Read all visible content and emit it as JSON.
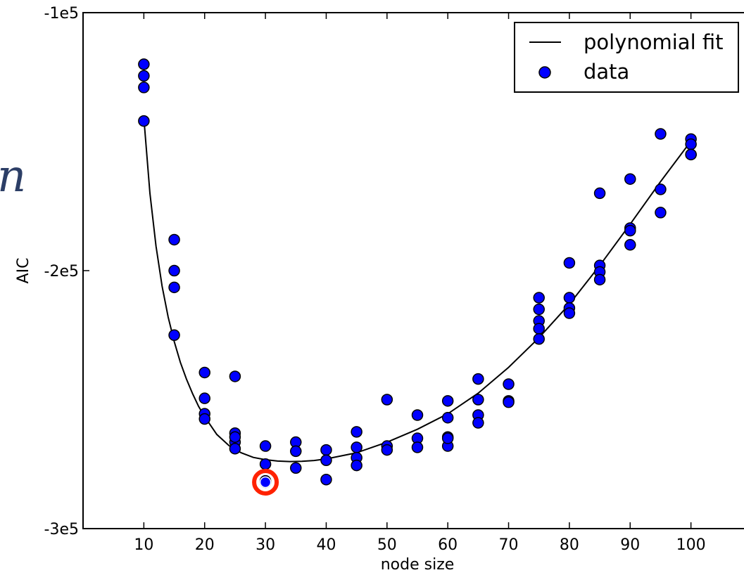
{
  "chart_data": {
    "type": "scatter",
    "xlabel": "node size",
    "ylabel": "AIC",
    "xlim": [
      0,
      110
    ],
    "ylim": [
      -300000,
      -100000
    ],
    "x_ticks": [
      10,
      20,
      30,
      40,
      50,
      60,
      70,
      80,
      90,
      100
    ],
    "x_tick_labels": [
      "10",
      "20",
      "30",
      "40",
      "50",
      "60",
      "70",
      "80",
      "90",
      "100"
    ],
    "y_ticks": [
      -100000,
      -200000,
      -300000
    ],
    "y_tick_labels": [
      "-1e5",
      "-2e5",
      "-3e5"
    ],
    "grid": false,
    "legend": {
      "placement": "top-right",
      "entries": [
        "polynomial fit",
        "data"
      ]
    },
    "series": [
      {
        "name": "polynomial fit",
        "kind": "line",
        "color": "#000000",
        "x": [
          10,
          11,
          12,
          13,
          14,
          15,
          16,
          17,
          18,
          19,
          20,
          22,
          24,
          26,
          28,
          30,
          32,
          34,
          36,
          38,
          40,
          45,
          50,
          55,
          60,
          65,
          70,
          75,
          80,
          85,
          90,
          95,
          100
        ],
        "y": [
          -140800,
          -170000,
          -190500,
          -206000,
          -218000,
          -227500,
          -235500,
          -242000,
          -247600,
          -252600,
          -256600,
          -263500,
          -267800,
          -270600,
          -272400,
          -273300,
          -273800,
          -274000,
          -273900,
          -273600,
          -273000,
          -270600,
          -266500,
          -261500,
          -255500,
          -247500,
          -237500,
          -226000,
          -213000,
          -198000,
          -182000,
          -165500,
          -149800
        ]
      },
      {
        "name": "data",
        "kind": "scatter",
        "color": "#0000ff",
        "edge_color": "#000000",
        "x": [
          10,
          10,
          10,
          10,
          15,
          15,
          15,
          15,
          20,
          20,
          20,
          20,
          25,
          25,
          25,
          25,
          25,
          30,
          30,
          30,
          30,
          35,
          35,
          35,
          40,
          40,
          40,
          45,
          45,
          45,
          45,
          50,
          50,
          50,
          55,
          55,
          55,
          60,
          60,
          60,
          60,
          60,
          65,
          65,
          65,
          65,
          70,
          70,
          70,
          75,
          75,
          75,
          75,
          75,
          80,
          80,
          80,
          80,
          85,
          85,
          85,
          85,
          90,
          90,
          90,
          90,
          95,
          95,
          95,
          100,
          100,
          100,
          100
        ],
        "y": [
          -120000,
          -124500,
          -129000,
          -142000,
          -188000,
          -200000,
          -206500,
          -225000,
          -239500,
          -249500,
          -255500,
          -257500,
          -241000,
          -263000,
          -266500,
          -269000,
          -264500,
          -268000,
          -275000,
          -281500,
          -282000,
          -266500,
          -270000,
          -276500,
          -269500,
          -273500,
          -281000,
          -262500,
          -268500,
          -272500,
          -275500,
          -250000,
          -268000,
          -269500,
          -256000,
          -265000,
          -268500,
          -250500,
          -257000,
          -264500,
          -268000,
          -265000,
          -242000,
          -250000,
          -256000,
          -259000,
          -244000,
          -250500,
          -251000,
          -215000,
          -219500,
          -222500,
          -226500,
          -210500,
          -210500,
          -214500,
          -216500,
          -197000,
          -198000,
          -200500,
          -203500,
          -170000,
          -183500,
          -184500,
          -190000,
          -164500,
          -168500,
          -177500,
          -147000,
          -149000,
          -151000,
          -155000,
          -155000
        ]
      }
    ],
    "highlight": {
      "x": 30,
      "y": -282000,
      "color": "#ff2200"
    }
  },
  "decor": {
    "stray_glyph": "n"
  }
}
